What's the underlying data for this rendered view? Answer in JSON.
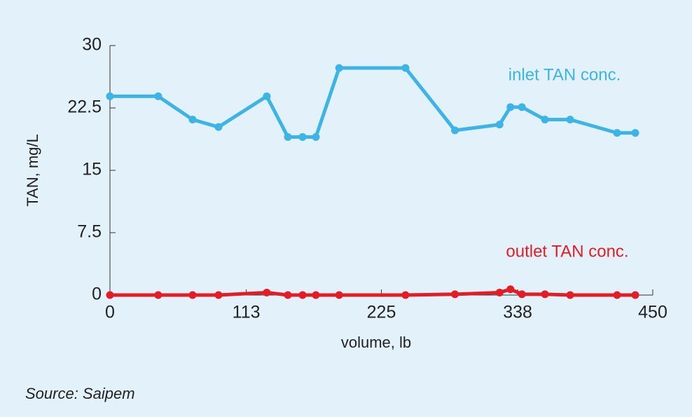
{
  "chart_data": {
    "type": "line",
    "x_label": "volume, lb",
    "y_label": "TAN, mg/L",
    "source": "Source: Saipem",
    "xlim": [
      0,
      450
    ],
    "xticks": [
      0,
      113,
      225,
      338,
      450
    ],
    "ylim": [
      0,
      30
    ],
    "yticks": [
      0,
      7.5,
      15,
      22.5,
      30
    ],
    "series": [
      {
        "name": "inlet TAN conc.",
        "color": "#3cb4e6",
        "x": [
          0,
          40,
          68.5,
          90,
          130,
          147.5,
          159.7,
          170.7,
          190,
          245,
          286,
          323,
          332,
          341.5,
          360.6,
          381.5,
          420.4,
          435.5
        ],
        "values": [
          23.9,
          23.9,
          21.1,
          20.2,
          23.9,
          19.0,
          19.0,
          19.0,
          27.3,
          27.3,
          19.8,
          20.5,
          22.6,
          22.6,
          21.1,
          21.1,
          19.5,
          19.5
        ]
      },
      {
        "name": "outlet TAN conc.",
        "color": "#e31d25",
        "x": [
          0,
          40,
          68.5,
          90,
          130,
          147.5,
          159.7,
          170.7,
          190,
          245,
          286,
          323,
          332,
          341.5,
          360.6,
          381.5,
          420.4,
          435.5
        ],
        "values": [
          0,
          0,
          0,
          0,
          0.3,
          0,
          0,
          0,
          0,
          0,
          0.1,
          0.3,
          0.7,
          0.1,
          0.1,
          0,
          0,
          0
        ]
      }
    ]
  }
}
